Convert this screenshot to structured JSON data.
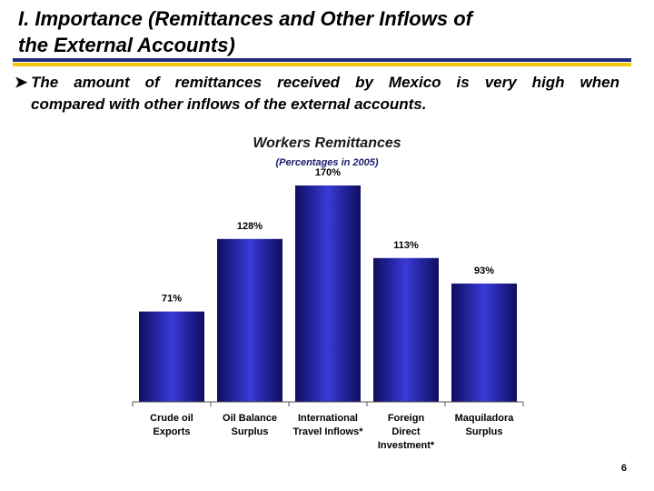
{
  "slide": {
    "title_line1": "I. Importance (Remittances and Other Inflows of",
    "title_line2": "the External Accounts)",
    "bullet_line1": "The amount of remittances received by Mexico is very high when",
    "bullet_line2": "compared with other inflows of the external accounts.",
    "page_number": "6",
    "rule_colors": {
      "top": "#1f2c82",
      "bottom": "#f2c600"
    }
  },
  "chart_data": {
    "type": "bar",
    "title": "Workers Remittances",
    "subtitle": "(Percentages in 2005)",
    "categories": [
      [
        "Crude oil",
        "Exports"
      ],
      [
        "Oil Balance",
        "Surplus"
      ],
      [
        "International",
        "Travel Inflows*"
      ],
      [
        "Foreign",
        "Direct",
        "Investment*"
      ],
      [
        "Maquiladora",
        "Surplus"
      ]
    ],
    "values": [
      71,
      128,
      170,
      113,
      93
    ],
    "data_labels": [
      "71%",
      "128%",
      "170%",
      "113%",
      "93%"
    ],
    "ylim": [
      0,
      180
    ],
    "grid": false,
    "bar_colors": {
      "dark": "#0d0d60",
      "light": "#3a3ad8"
    }
  }
}
